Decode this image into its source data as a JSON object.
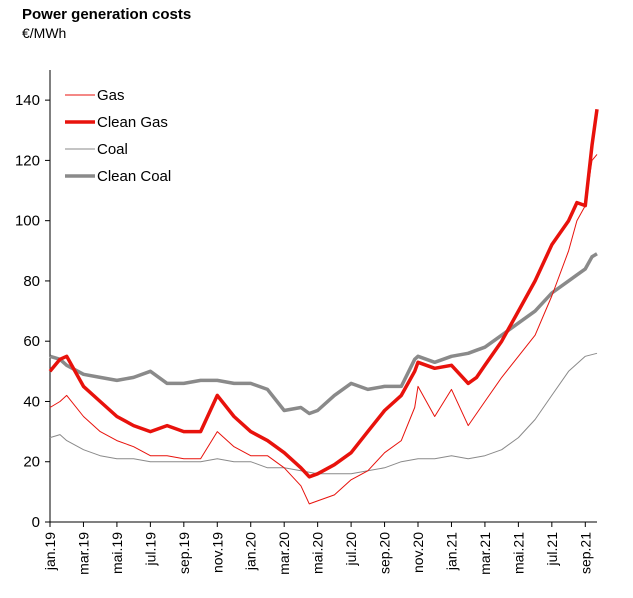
{
  "header": {
    "title": "Power generation costs",
    "unit": "€/MWh"
  },
  "chart_data": {
    "type": "line",
    "title": "Power generation costs",
    "ylabel": "€/MWh",
    "xlabel": "",
    "ylim": [
      0,
      150
    ],
    "yticks": [
      0,
      20,
      40,
      60,
      80,
      100,
      120,
      140
    ],
    "x_tick_labels": [
      "jan.19",
      "mar.19",
      "mai.19",
      "jul.19",
      "sep.19",
      "nov.19",
      "jan.20",
      "mar.20",
      "mai.20",
      "jul.20",
      "sep.20",
      "nov.20",
      "jan.21",
      "mar.21",
      "mai.21",
      "jul.21",
      "sep.21"
    ],
    "x_range": [
      0,
      32.7
    ],
    "legend_position": "top-left",
    "grid": false,
    "series": [
      {
        "name": "Gas",
        "color": "#e8120c",
        "style": "thin",
        "x": [
          0,
          0.6,
          1,
          2,
          3,
          4,
          5,
          6,
          7,
          8,
          9,
          10,
          11,
          12,
          13,
          14,
          15,
          15.5,
          16,
          17,
          18,
          19,
          20,
          21,
          21.8,
          22,
          23,
          24,
          25,
          25.5,
          26,
          27,
          28,
          29,
          30,
          31,
          31.5,
          32,
          32.4,
          32.7
        ],
        "y": [
          38,
          40,
          42,
          35,
          30,
          27,
          25,
          22,
          22,
          21,
          21,
          30,
          25,
          22,
          22,
          18,
          12,
          6,
          7,
          9,
          14,
          17,
          23,
          27,
          38,
          45,
          35,
          44,
          32,
          36,
          40,
          48,
          55,
          62,
          75,
          90,
          100,
          105,
          120,
          122
        ]
      },
      {
        "name": "Clean Gas",
        "color": "#e8120c",
        "style": "thick",
        "x": [
          0,
          0.6,
          1,
          2,
          3,
          4,
          5,
          6,
          7,
          8,
          9,
          10,
          11,
          12,
          13,
          14,
          15,
          15.5,
          16,
          17,
          18,
          19,
          20,
          21,
          21.8,
          22,
          23,
          24,
          25,
          25.5,
          26,
          27,
          28,
          29,
          30,
          31,
          31.5,
          32,
          32.4,
          32.7
        ],
        "y": [
          50,
          54,
          55,
          45,
          40,
          35,
          32,
          30,
          32,
          30,
          30,
          42,
          35,
          30,
          27,
          23,
          18,
          15,
          16,
          19,
          23,
          30,
          37,
          42,
          50,
          53,
          51,
          52,
          46,
          48,
          52,
          60,
          70,
          80,
          92,
          100,
          106,
          105,
          125,
          137
        ]
      },
      {
        "name": "Coal",
        "color": "#8a8a8a",
        "style": "thin",
        "x": [
          0,
          0.6,
          1,
          2,
          3,
          4,
          5,
          6,
          7,
          8,
          9,
          10,
          11,
          12,
          13,
          14,
          15,
          16,
          17,
          18,
          19,
          20,
          21,
          22,
          23,
          24,
          25,
          26,
          27,
          28,
          29,
          30,
          31,
          32,
          32.7
        ],
        "y": [
          28,
          29,
          27,
          24,
          22,
          21,
          21,
          20,
          20,
          20,
          20,
          21,
          20,
          20,
          18,
          18,
          17,
          16,
          16,
          16,
          17,
          18,
          20,
          21,
          21,
          22,
          21,
          22,
          24,
          28,
          34,
          42,
          50,
          55,
          56
        ]
      },
      {
        "name": "Clean Coal",
        "color": "#8a8a8a",
        "style": "thick",
        "x": [
          0,
          0.6,
          1,
          2,
          3,
          4,
          5,
          6,
          7,
          8,
          9,
          10,
          11,
          12,
          13,
          14,
          15,
          15.5,
          16,
          17,
          18,
          19,
          20,
          21,
          21.8,
          22,
          23,
          24,
          25,
          25.5,
          26,
          27,
          28,
          29,
          30,
          31,
          31.5,
          32,
          32.4,
          32.7
        ],
        "y": [
          55,
          54,
          52,
          49,
          48,
          47,
          48,
          50,
          46,
          46,
          47,
          47,
          46,
          46,
          44,
          37,
          38,
          36,
          37,
          42,
          46,
          44,
          45,
          45,
          54,
          55,
          53,
          55,
          56,
          57,
          58,
          62,
          66,
          70,
          76,
          80,
          82,
          84,
          88,
          89
        ]
      }
    ]
  }
}
